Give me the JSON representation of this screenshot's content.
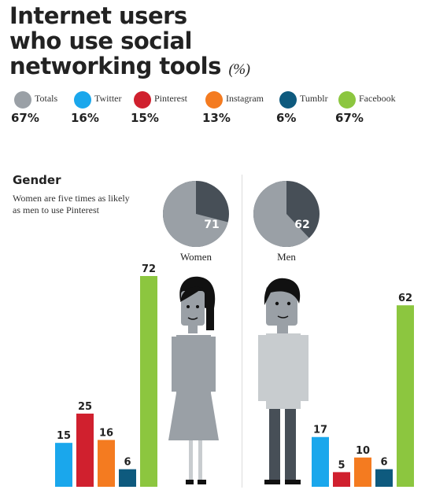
{
  "title": {
    "line1": "Internet users",
    "line2": "who use social",
    "line3": "networking tools",
    "unit": "(%)"
  },
  "legend": [
    {
      "name": "Totals",
      "value": "67%",
      "color": "#9aa0a6"
    },
    {
      "name": "Twitter",
      "value": "16%",
      "color": "#1aa7ec"
    },
    {
      "name": "Pinterest",
      "value": "15%",
      "color": "#d0202e"
    },
    {
      "name": "Instagram",
      "value": "13%",
      "color": "#f47b20"
    },
    {
      "name": "Tumblr",
      "value": "6%",
      "color": "#0e5a7e"
    },
    {
      "name": "Facebook",
      "value": "67%",
      "color": "#8cc63f"
    }
  ],
  "section": {
    "title": "Gender",
    "note": "Women are five times as likely as men to use Pinterest"
  },
  "chart_data": [
    {
      "type": "pie",
      "title": "Women",
      "value": 71,
      "series_color": "#9aa0a6",
      "remainder_color": "#474f57"
    },
    {
      "type": "pie",
      "title": "Men",
      "value": 62,
      "series_color": "#9aa0a6",
      "remainder_color": "#474f57"
    },
    {
      "type": "bar",
      "title": "Women",
      "categories": [
        "Twitter",
        "Pinterest",
        "Instagram",
        "Tumblr",
        "Facebook"
      ],
      "values": [
        15,
        25,
        16,
        6,
        72
      ],
      "colors": [
        "#1aa7ec",
        "#d0202e",
        "#f47b20",
        "#0e5a7e",
        "#8cc63f"
      ],
      "ylim": [
        0,
        72
      ]
    },
    {
      "type": "bar",
      "title": "Men",
      "categories": [
        "Twitter",
        "Pinterest",
        "Instagram",
        "Tumblr",
        "Facebook"
      ],
      "values": [
        17,
        5,
        10,
        6,
        62
      ],
      "colors": [
        "#1aa7ec",
        "#d0202e",
        "#f47b20",
        "#0e5a7e",
        "#8cc63f"
      ],
      "ylim": [
        0,
        72
      ]
    }
  ]
}
